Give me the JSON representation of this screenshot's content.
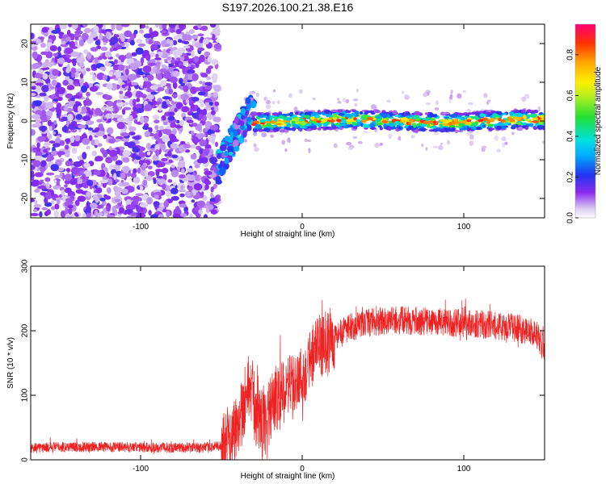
{
  "title": "S197.2026.100.21.38.E16",
  "chart_data": [
    {
      "type": "heatmap",
      "xlabel": "Height of straight line (km)",
      "ylabel": "Frequency (Hz)",
      "xlim": [
        -168,
        150
      ],
      "ylim": [
        -25,
        25
      ],
      "xticks": [
        -100,
        0,
        100
      ],
      "yticks": [
        -20,
        -10,
        0,
        10,
        20
      ],
      "colorbar": {
        "label": "Normalized spectral amplitude",
        "range": [
          0,
          0.95
        ],
        "ticks": [
          "0.0",
          "0.2",
          "0.4",
          "0.6",
          "0.8"
        ],
        "tick_values": [
          0.0,
          0.2,
          0.4,
          0.6,
          0.8
        ]
      },
      "regions": [
        {
          "name": "noise",
          "x_range": [
            -168,
            -52
          ],
          "freq_range": [
            -25,
            25
          ],
          "amplitude": 0.15
        },
        {
          "name": "transition",
          "x_range": [
            -52,
            -30
          ],
          "freq_range": [
            -14,
            8
          ],
          "amplitude": 0.4
        },
        {
          "name": "carrier",
          "x_range": [
            -30,
            150
          ],
          "freq_center": 0,
          "freq_halfwidth": 1.5,
          "amplitude": 0.9
        }
      ]
    },
    {
      "type": "line",
      "xlabel": "Height of straight line (km)",
      "ylabel": "SNR (10 * v/v)",
      "xlim": [
        -168,
        150
      ],
      "ylim": [
        0,
        300
      ],
      "xticks": [
        -100,
        0,
        100
      ],
      "yticks": [
        0,
        100,
        200,
        300
      ],
      "color": "#ee2222",
      "series": [
        {
          "name": "SNR",
          "x": [
            -168,
            -150,
            -120,
            -90,
            -60,
            -48,
            -42,
            -36,
            -32,
            -28,
            -24,
            -20,
            -15,
            -10,
            -5,
            0,
            5,
            10,
            20,
            30,
            40,
            50,
            60,
            70,
            80,
            90,
            100,
            110,
            120,
            130,
            140,
            145,
            150
          ],
          "values": [
            18,
            20,
            20,
            19,
            19,
            22,
            45,
            90,
            120,
            60,
            55,
            80,
            95,
            110,
            120,
            130,
            155,
            175,
            190,
            205,
            212,
            215,
            216,
            215,
            214,
            213,
            212,
            210,
            208,
            205,
            200,
            195,
            170
          ]
        }
      ]
    }
  ]
}
